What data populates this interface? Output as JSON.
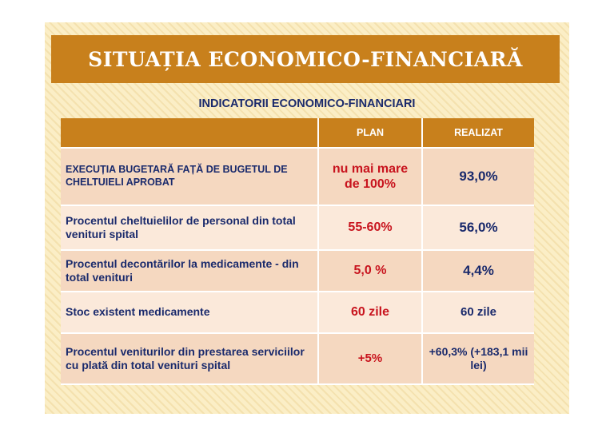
{
  "slide": {
    "title": "SITUAȚIA ECONOMICO-FINANCIARĂ",
    "subtitle": "INDICATORII ECONOMICO-FINANCIARI"
  },
  "table": {
    "headers": [
      "",
      "PLAN",
      "REALIZAT"
    ],
    "rows": [
      {
        "indicator": "EXECUȚIA BUGETARĂ FAȚĂ DE BUGETUL DE CHELTUIELI APROBAT",
        "plan": "nu mai mare de 100%",
        "realizat": "93,0%"
      },
      {
        "indicator": "Procentul cheltuielilor de personal din total venituri  spital",
        "plan": "55-60%",
        "realizat": "56,0%"
      },
      {
        "indicator": "Procentul decontărilor la medicamente - din total venituri",
        "plan": "5,0 %",
        "realizat": "4,4%"
      },
      {
        "indicator": "Stoc existent medicamente",
        "plan": "60 zile",
        "realizat": "60 zile"
      },
      {
        "indicator": "Procentul veniturilor din prestarea serviciilor cu plată din total venituri spital",
        "plan": "+5%",
        "realizat": "+60,3% (+183,1 mii lei)"
      }
    ]
  },
  "colors": {
    "header_bar": "#c8801c",
    "row_dark": "#f5d8c0",
    "row_light": "#fbe9da",
    "text_navy": "#1a2a6c",
    "text_red": "#c8141e",
    "background": "#fbeec6"
  }
}
